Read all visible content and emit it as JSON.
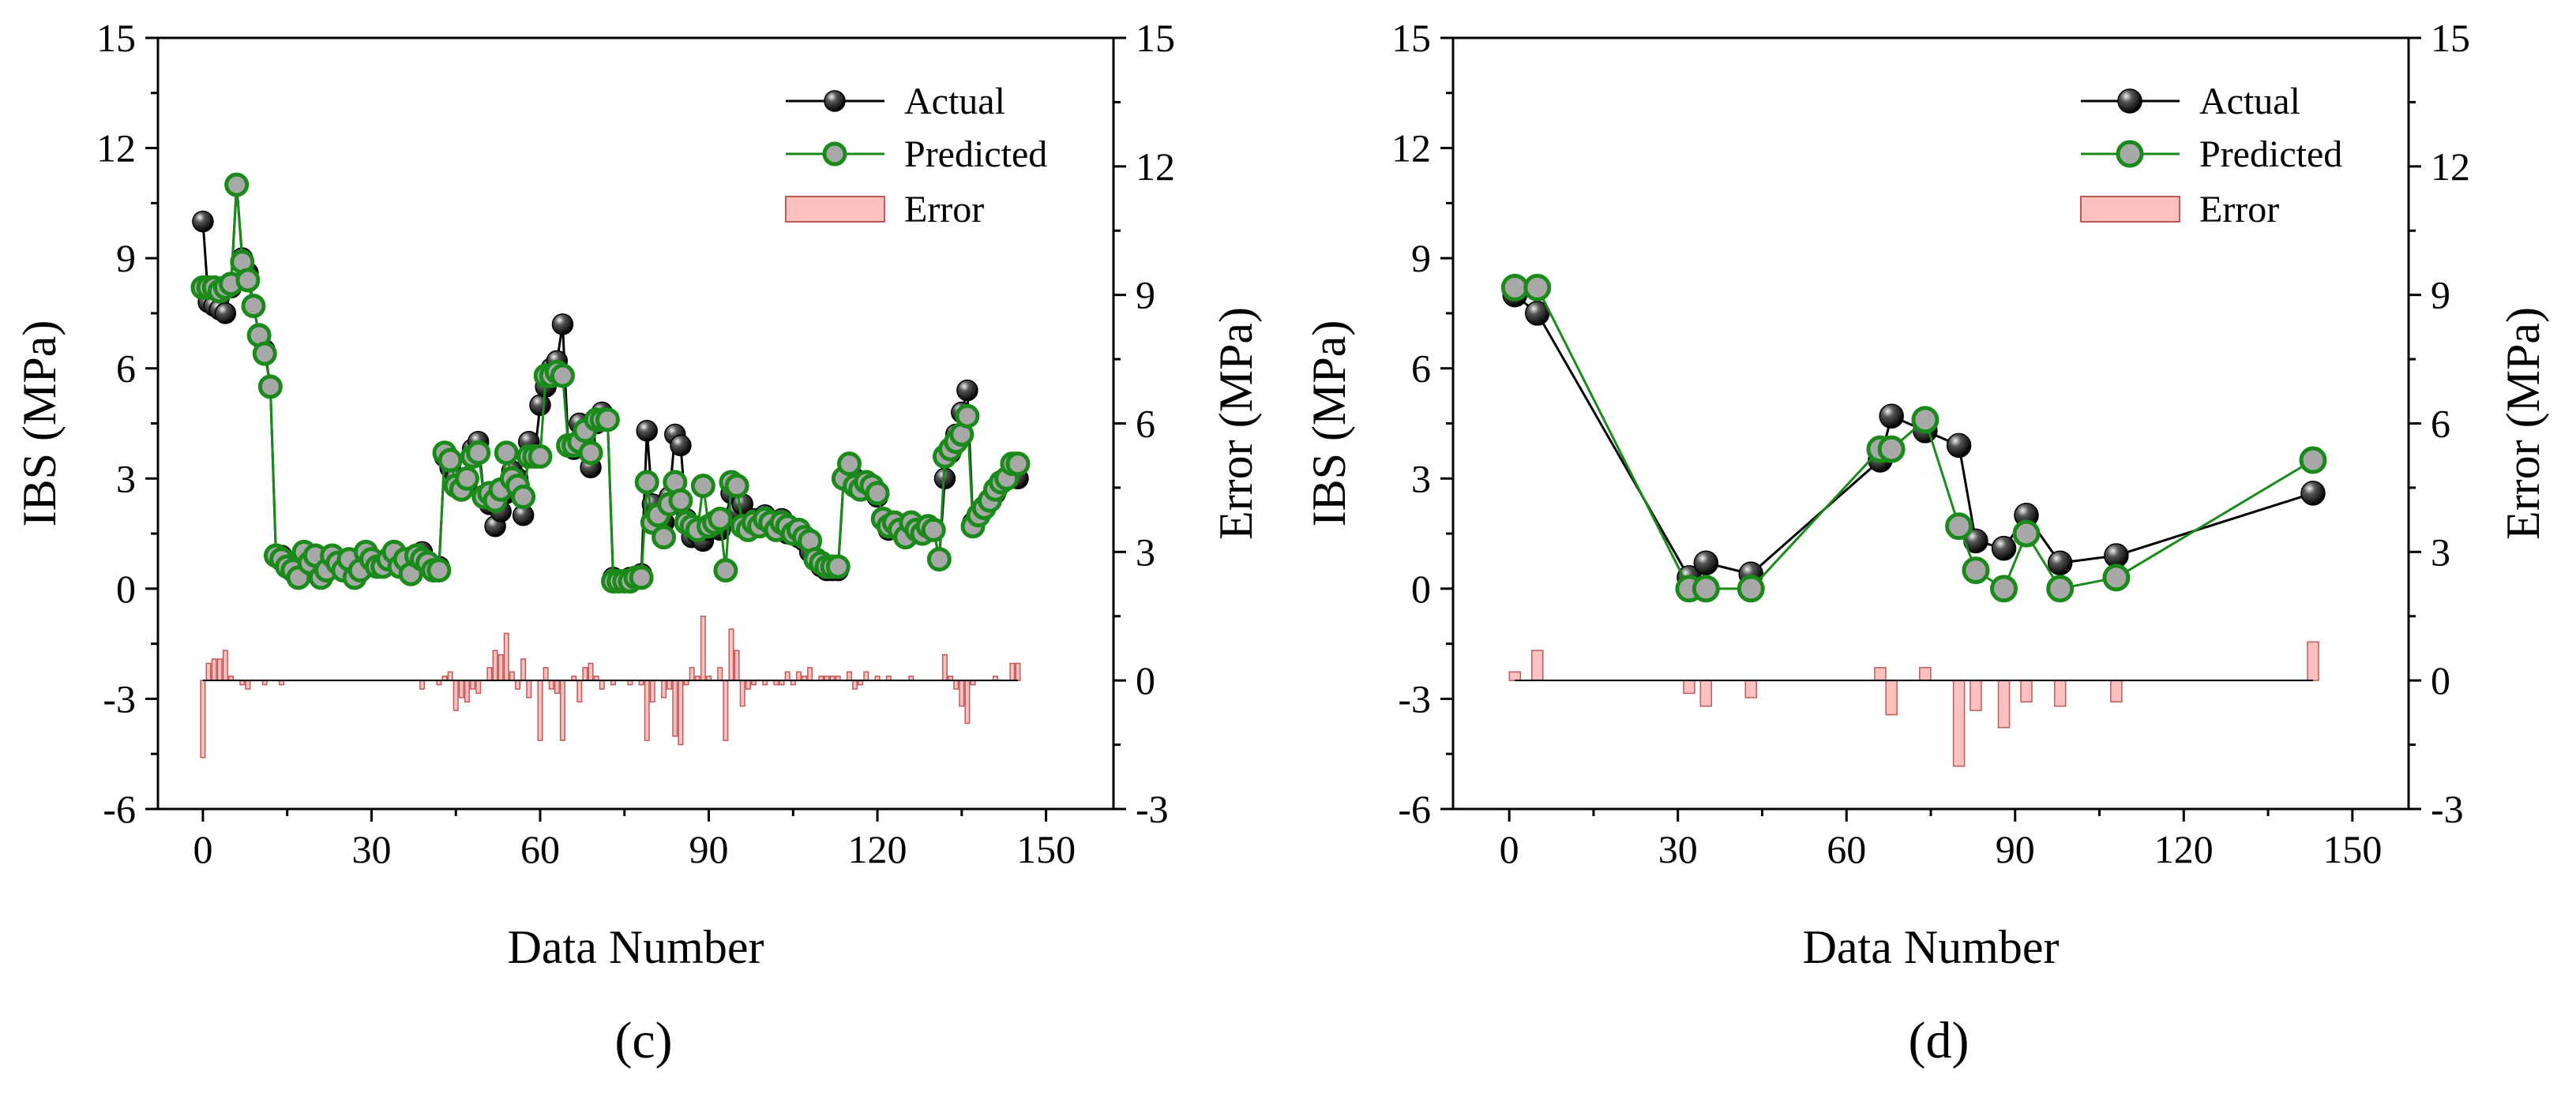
{
  "colors": {
    "actual": "#000000",
    "predicted_line": "#1a8a1a",
    "predicted_fill": "#a8a8a8",
    "error_fill": "#ffc0c0",
    "error_stroke": "#c05a5a"
  },
  "chart_data": [
    {
      "type": "line+bar",
      "panel_label": "(c)",
      "xlabel": "Data Number",
      "ylabel_left": "IBS (MPa)",
      "ylabel_right": "Error (MPa)",
      "xlim": [
        -8,
        162
      ],
      "ylim_left": [
        -6,
        15
      ],
      "ylim_right": [
        -3,
        15
      ],
      "xticks": [
        0,
        30,
        60,
        90,
        120,
        150
      ],
      "yticks_left": [
        -6,
        -3,
        0,
        3,
        6,
        9,
        12,
        15
      ],
      "yticks_right": [
        -3,
        0,
        3,
        6,
        9,
        12,
        15
      ],
      "legend": {
        "position": "top-right",
        "entries": [
          "Actual",
          "Predicted",
          "Error"
        ]
      },
      "series": [
        {
          "name": "Actual",
          "x": [
            0,
            1,
            2,
            3,
            4,
            5,
            6,
            7,
            8,
            9,
            10,
            11,
            12,
            13,
            14,
            15,
            16,
            17,
            18,
            19,
            20,
            21,
            22,
            23,
            24,
            25,
            26,
            27,
            28,
            29,
            30,
            31,
            32,
            33,
            34,
            35,
            36,
            37,
            38,
            39,
            40,
            41,
            42,
            43,
            44,
            45,
            46,
            47,
            48,
            49,
            50,
            51,
            52,
            53,
            54,
            55,
            56,
            57,
            58,
            59,
            60,
            61,
            62,
            63,
            64,
            65,
            66,
            67,
            68,
            69,
            70,
            71,
            72,
            73,
            74,
            75,
            76,
            77,
            78,
            79,
            80,
            81,
            82,
            83,
            84,
            85,
            86,
            87,
            88,
            89,
            90,
            91,
            92,
            93,
            94,
            95,
            96,
            97,
            98,
            99,
            100,
            101,
            102,
            103,
            104,
            105,
            106,
            107,
            108,
            109,
            110,
            111,
            112,
            113,
            114,
            115,
            116,
            117,
            118,
            119,
            120,
            121,
            122,
            123,
            124,
            125,
            126,
            127,
            128,
            129,
            130,
            131,
            132,
            133,
            134,
            135,
            136,
            137,
            138,
            139,
            140,
            141,
            142,
            143,
            144,
            145
          ],
          "values": [
            10.0,
            7.8,
            7.7,
            7.6,
            7.5,
            8.2,
            11.0,
            9.0,
            8.6,
            7.7,
            6.9,
            6.5,
            5.5,
            0.9,
            0.9,
            0.6,
            0.5,
            0.3,
            1.0,
            0.7,
            0.9,
            0.3,
            0.5,
            0.9,
            0.7,
            0.5,
            0.8,
            0.3,
            0.5,
            1.0,
            0.8,
            0.6,
            0.6,
            0.8,
            1.0,
            0.6,
            0.8,
            0.4,
            0.9,
            1.0,
            0.7,
            0.5,
            0.6,
            3.6,
            3.3,
            3.0,
            2.8,
            2.9,
            3.8,
            4.0,
            2.5,
            2.3,
            1.7,
            2.1,
            2.6,
            3.2,
            3.0,
            2.0,
            4.0,
            3.6,
            5.0,
            5.5,
            6.0,
            6.2,
            7.2,
            3.9,
            3.8,
            4.5,
            4.0,
            3.3,
            4.5,
            4.8,
            4.6,
            0.3,
            0.2,
            0.2,
            0.3,
            0.3,
            0.4,
            4.3,
            2.3,
            2.0,
            1.8,
            2.5,
            4.2,
            3.9,
            1.9,
            1.4,
            1.5,
            1.3,
            1.6,
            1.8,
            1.6,
            1.9,
            2.6,
            2.1,
            2.3,
            1.8,
            1.9,
            1.7,
            2.0,
            1.8,
            1.7,
            1.9,
            1.5,
            1.6,
            1.4,
            1.3,
            1.0,
            0.8,
            0.6,
            0.5,
            0.5,
            0.5,
            3.0,
            3.2,
            3.0,
            2.8,
            2.7,
            2.8,
            2.5,
            1.9,
            1.6,
            1.8,
            1.6,
            1.4,
            1.7,
            1.6,
            1.5,
            1.7,
            1.6,
            0.8,
            3.0,
            3.7,
            4.2,
            4.8,
            5.4,
            1.8,
            2.0,
            2.2,
            2.4,
            2.6,
            2.9,
            3.0,
            3.1,
            3.0
          ]
        },
        {
          "name": "Predicted",
          "x": [
            0,
            1,
            2,
            3,
            4,
            5,
            6,
            7,
            8,
            9,
            10,
            11,
            12,
            13,
            14,
            15,
            16,
            17,
            18,
            19,
            20,
            21,
            22,
            23,
            24,
            25,
            26,
            27,
            28,
            29,
            30,
            31,
            32,
            33,
            34,
            35,
            36,
            37,
            38,
            39,
            40,
            41,
            42,
            43,
            44,
            45,
            46,
            47,
            48,
            49,
            50,
            51,
            52,
            53,
            54,
            55,
            56,
            57,
            58,
            59,
            60,
            61,
            62,
            63,
            64,
            65,
            66,
            67,
            68,
            69,
            70,
            71,
            72,
            73,
            74,
            75,
            76,
            77,
            78,
            79,
            80,
            81,
            82,
            83,
            84,
            85,
            86,
            87,
            88,
            89,
            90,
            91,
            92,
            93,
            94,
            95,
            96,
            97,
            98,
            99,
            100,
            101,
            102,
            103,
            104,
            105,
            106,
            107,
            108,
            109,
            110,
            111,
            112,
            113,
            114,
            115,
            116,
            117,
            118,
            119,
            120,
            121,
            122,
            123,
            124,
            125,
            126,
            127,
            128,
            129,
            130,
            131,
            132,
            133,
            134,
            135,
            136,
            137,
            138,
            139,
            140,
            141,
            142,
            143,
            144,
            145
          ],
          "values": [
            8.2,
            8.2,
            8.2,
            8.1,
            8.2,
            8.3,
            11.0,
            8.9,
            8.4,
            7.7,
            6.9,
            6.4,
            5.5,
            0.9,
            0.8,
            0.6,
            0.5,
            0.3,
            1.0,
            0.7,
            0.9,
            0.3,
            0.5,
            0.9,
            0.7,
            0.5,
            0.8,
            0.3,
            0.5,
            1.0,
            0.8,
            0.6,
            0.6,
            0.8,
            1.0,
            0.6,
            0.8,
            0.4,
            0.9,
            0.8,
            0.7,
            0.5,
            0.5,
            3.7,
            3.5,
            2.8,
            2.7,
            3.0,
            3.6,
            3.7,
            2.5,
            2.6,
            2.4,
            2.7,
            3.7,
            3.0,
            2.8,
            2.5,
            3.6,
            3.6,
            3.6,
            5.8,
            5.8,
            5.9,
            5.8,
            3.9,
            3.9,
            4.0,
            4.3,
            3.7,
            4.6,
            4.6,
            4.6,
            0.2,
            0.2,
            0.2,
            0.2,
            0.3,
            0.3,
            2.9,
            1.8,
            2.0,
            1.4,
            2.3,
            2.9,
            2.4,
            1.8,
            1.7,
            1.6,
            2.8,
            1.7,
            1.8,
            1.9,
            0.5,
            2.9,
            2.8,
            1.7,
            1.6,
            1.8,
            1.7,
            1.9,
            1.8,
            1.6,
            1.8,
            1.7,
            1.5,
            1.6,
            1.4,
            1.3,
            0.8,
            0.7,
            0.6,
            0.6,
            0.6,
            3.0,
            3.4,
            2.8,
            2.7,
            2.9,
            2.8,
            2.6,
            1.9,
            1.7,
            1.8,
            1.6,
            1.4,
            1.8,
            1.6,
            1.5,
            1.7,
            1.6,
            0.8,
            3.6,
            3.8,
            4.0,
            4.2,
            4.7,
            1.7,
            2.0,
            2.2,
            2.4,
            2.7,
            2.9,
            3.0,
            3.4,
            3.4
          ]
        },
        {
          "name": "Error",
          "x": [
            0,
            1,
            2,
            3,
            4,
            5,
            6,
            7,
            8,
            9,
            10,
            11,
            12,
            13,
            14,
            15,
            16,
            17,
            18,
            19,
            20,
            21,
            22,
            23,
            24,
            25,
            26,
            27,
            28,
            29,
            30,
            31,
            32,
            33,
            34,
            35,
            36,
            37,
            38,
            39,
            40,
            41,
            42,
            43,
            44,
            45,
            46,
            47,
            48,
            49,
            50,
            51,
            52,
            53,
            54,
            55,
            56,
            57,
            58,
            59,
            60,
            61,
            62,
            63,
            64,
            65,
            66,
            67,
            68,
            69,
            70,
            71,
            72,
            73,
            74,
            75,
            76,
            77,
            78,
            79,
            80,
            81,
            82,
            83,
            84,
            85,
            86,
            87,
            88,
            89,
            90,
            91,
            92,
            93,
            94,
            95,
            96,
            97,
            98,
            99,
            100,
            101,
            102,
            103,
            104,
            105,
            106,
            107,
            108,
            109,
            110,
            111,
            112,
            113,
            114,
            115,
            116,
            117,
            118,
            119,
            120,
            121,
            122,
            123,
            124,
            125,
            126,
            127,
            128,
            129,
            130,
            131,
            132,
            133,
            134,
            135,
            136,
            137,
            138,
            139,
            140,
            141,
            142,
            143,
            144,
            145
          ],
          "values": [
            -1.8,
            0.4,
            0.5,
            0.5,
            0.7,
            0.1,
            0.0,
            -0.1,
            -0.2,
            0.0,
            0.0,
            -0.1,
            0.0,
            0.0,
            -0.1,
            0.0,
            0.0,
            0.0,
            0.0,
            0.0,
            0.0,
            0.0,
            0.0,
            0.0,
            0.0,
            0.0,
            0.0,
            0.0,
            0.0,
            0.0,
            0.0,
            0.0,
            0.0,
            0.0,
            0.0,
            0.0,
            0.0,
            0.0,
            0.0,
            -0.2,
            0.0,
            0.0,
            -0.1,
            0.1,
            0.2,
            -0.7,
            -0.4,
            -0.5,
            -0.2,
            -0.3,
            0.0,
            0.3,
            0.7,
            0.6,
            1.1,
            0.2,
            -0.2,
            0.5,
            -0.4,
            0.0,
            -1.4,
            0.3,
            -0.2,
            -0.3,
            -1.4,
            0.0,
            0.1,
            -0.5,
            0.3,
            0.4,
            0.1,
            -0.2,
            0.0,
            -0.1,
            0.0,
            0.0,
            -0.1,
            0.0,
            -0.1,
            -1.4,
            -0.5,
            0.0,
            -0.4,
            -0.2,
            -1.3,
            -1.5,
            -0.1,
            0.3,
            0.1,
            1.5,
            0.1,
            0.0,
            0.3,
            -1.4,
            1.2,
            0.7,
            -0.6,
            -0.2,
            -0.1,
            0.0,
            -0.1,
            0.0,
            -0.1,
            -0.1,
            0.2,
            -0.1,
            0.2,
            0.1,
            0.3,
            0.0,
            0.1,
            0.1,
            0.1,
            0.1,
            0.0,
            0.2,
            -0.2,
            -0.1,
            0.2,
            0.0,
            0.1,
            0.0,
            0.1,
            0.0,
            0.0,
            0.0,
            0.1,
            0.0,
            0.0,
            0.0,
            0.0,
            0.0,
            0.6,
            0.1,
            -0.2,
            -0.6,
            -1.0,
            -0.1,
            0.0,
            0.0,
            0.0,
            0.1,
            0.0,
            0.0,
            0.4,
            0.4
          ]
        }
      ]
    },
    {
      "type": "line+bar",
      "panel_label": "(d)",
      "xlabel": "Data Number",
      "ylabel_left": "IBS (MPa)",
      "ylabel_right": "Error (MPa)",
      "xlim": [
        -10,
        160
      ],
      "ylim_left": [
        -6,
        15
      ],
      "ylim_right": [
        -3,
        15
      ],
      "xticks": [
        0,
        30,
        60,
        90,
        120,
        150
      ],
      "yticks_left": [
        -6,
        -3,
        0,
        3,
        6,
        9,
        12,
        15
      ],
      "yticks_right": [
        -3,
        0,
        3,
        6,
        9,
        12,
        15
      ],
      "legend": {
        "position": "top-right",
        "entries": [
          "Actual",
          "Predicted",
          "Error"
        ]
      },
      "series": [
        {
          "name": "Actual",
          "x": [
            1,
            5,
            32,
            35,
            43,
            66,
            68,
            74,
            80,
            83,
            88,
            92,
            98,
            108,
            143
          ],
          "values": [
            8.0,
            7.5,
            0.3,
            0.7,
            0.4,
            3.5,
            4.7,
            4.3,
            3.9,
            1.3,
            1.1,
            2.0,
            0.7,
            0.9,
            2.6
          ]
        },
        {
          "name": "Predicted",
          "x": [
            1,
            5,
            32,
            35,
            43,
            66,
            68,
            74,
            80,
            83,
            88,
            92,
            98,
            108,
            143
          ],
          "values": [
            8.2,
            8.2,
            0.0,
            0.0,
            0.0,
            3.8,
            3.8,
            4.6,
            1.7,
            0.5,
            0.0,
            1.5,
            0.0,
            0.3,
            3.5
          ]
        },
        {
          "name": "Error",
          "x": [
            1,
            5,
            32,
            35,
            43,
            66,
            68,
            74,
            80,
            83,
            88,
            92,
            98,
            108,
            143
          ],
          "values": [
            0.2,
            0.7,
            -0.3,
            -0.6,
            -0.4,
            0.3,
            -0.8,
            0.3,
            -2.0,
            -0.7,
            -1.1,
            -0.5,
            -0.6,
            -0.5,
            0.9
          ]
        }
      ]
    }
  ]
}
